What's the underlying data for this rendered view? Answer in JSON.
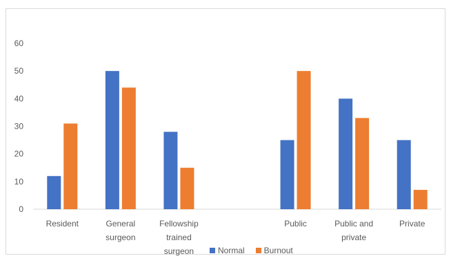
{
  "chart_data": {
    "type": "bar",
    "categories": [
      [
        "Resident"
      ],
      [
        "General",
        "surgeon"
      ],
      [
        "Fellowship",
        "trained",
        "surgeon"
      ],
      [
        ""
      ],
      [
        "Public"
      ],
      [
        "Public and",
        "private"
      ],
      [
        "Private"
      ]
    ],
    "series": [
      {
        "name": "Normal",
        "color": "#4472C4",
        "values": [
          12,
          50,
          28,
          null,
          25,
          40,
          25
        ]
      },
      {
        "name": "Burnout",
        "color": "#ED7D31",
        "values": [
          31,
          44,
          15,
          null,
          50,
          33,
          7
        ]
      }
    ],
    "ylim": [
      0,
      60
    ],
    "yticks": [
      0,
      10,
      20,
      30,
      40,
      50,
      60
    ],
    "grid": false,
    "legend_position": "bottom"
  }
}
